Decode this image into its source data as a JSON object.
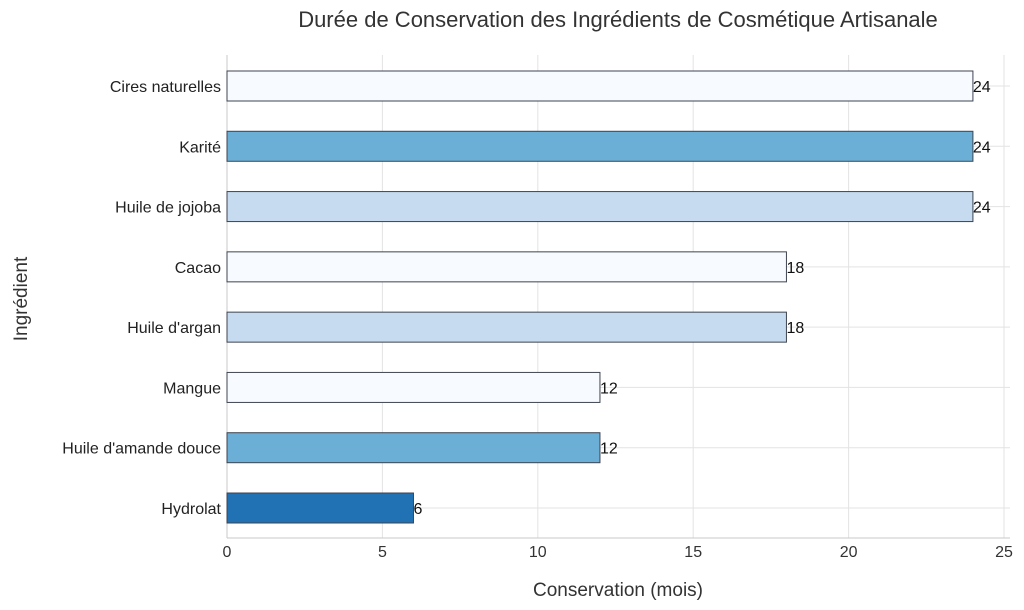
{
  "chart_data": {
    "type": "bar",
    "orientation": "horizontal",
    "title": "Durée de Conservation des Ingrédients de Cosmétique Artisanale",
    "xlabel": "Conservation (mois)",
    "ylabel": "Ingrédient",
    "xlim": [
      0,
      25
    ],
    "xticks": [
      0,
      5,
      10,
      15,
      20,
      25
    ],
    "grid": true,
    "categories": [
      "Cires naturelles",
      "Karité",
      "Huile de jojoba",
      "Cacao",
      "Huile d'argan",
      "Mangue",
      "Huile d'amande douce",
      "Hydrolat"
    ],
    "values": [
      24,
      24,
      24,
      18,
      18,
      12,
      12,
      6
    ],
    "colors": [
      "#f7fbff",
      "#6baed6",
      "#c6dbef",
      "#f7fbff",
      "#c6dbef",
      "#f7fbff",
      "#6baed6",
      "#2171b5"
    ]
  }
}
